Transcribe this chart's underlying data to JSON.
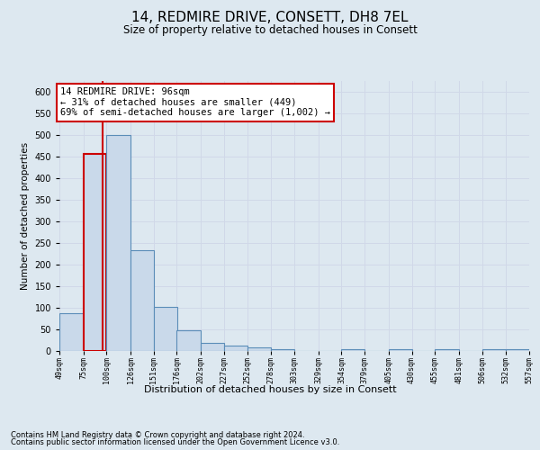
{
  "title": "14, REDMIRE DRIVE, CONSETT, DH8 7EL",
  "subtitle": "Size of property relative to detached houses in Consett",
  "xlabel": "Distribution of detached houses by size in Consett",
  "ylabel": "Number of detached properties",
  "footer_line1": "Contains HM Land Registry data © Crown copyright and database right 2024.",
  "footer_line2": "Contains public sector information licensed under the Open Government Licence v3.0.",
  "annotation_title": "14 REDMIRE DRIVE: 96sqm",
  "annotation_line1": "← 31% of detached houses are smaller (449)",
  "annotation_line2": "69% of semi-detached houses are larger (1,002) →",
  "property_size_sqm": 96,
  "bar_edges": [
    49,
    75,
    100,
    126,
    151,
    176,
    202,
    227,
    252,
    278,
    303,
    329,
    354,
    379,
    405,
    430,
    455,
    481,
    506,
    532,
    557
  ],
  "bar_heights": [
    88,
    457,
    500,
    233,
    102,
    47,
    19,
    12,
    8,
    4,
    0,
    0,
    4,
    0,
    4,
    0,
    4,
    0,
    4,
    4
  ],
  "bar_color": "#c9d9ea",
  "bar_edge_color": "#5b8db8",
  "highlight_bar_index": 1,
  "highlight_bar_edge_color": "#cc0000",
  "annotation_box_edge_color": "#cc0000",
  "annotation_box_face_color": "white",
  "grid_color": "#d0d8e8",
  "bg_color": "#dde8f0",
  "plot_bg_color": "#dde8f0",
  "ylim": [
    0,
    625
  ],
  "yticks": [
    0,
    50,
    100,
    150,
    200,
    250,
    300,
    350,
    400,
    450,
    500,
    550,
    600
  ]
}
